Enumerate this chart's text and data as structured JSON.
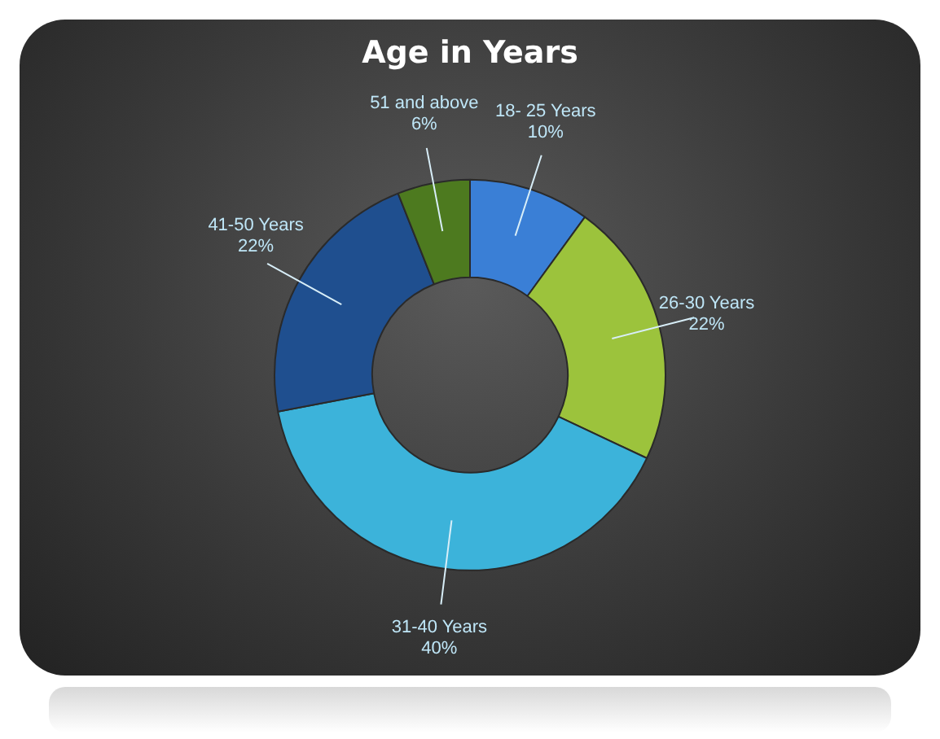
{
  "chart_data": {
    "type": "donut",
    "title": "Age in Years",
    "categories": [
      "18- 25 Years",
      "26-30 Years",
      "31-40 Years",
      "41-50 Years",
      "51 and above"
    ],
    "values": [
      10,
      22,
      40,
      22,
      6
    ],
    "colors": [
      "#3a7fd6",
      "#9cc33c",
      "#3cb3da",
      "#1f4f8f",
      "#4d7a1f"
    ],
    "value_labels": [
      "10%",
      "22%",
      "40%",
      "22%",
      "6%"
    ],
    "legend": false
  }
}
